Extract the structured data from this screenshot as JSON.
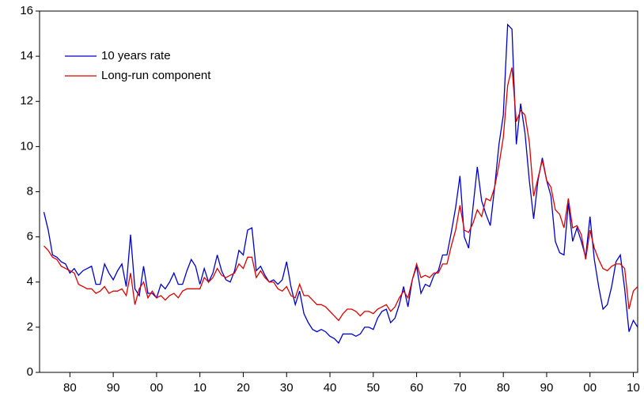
{
  "chart_data": {
    "type": "line",
    "x": [
      1874,
      1875,
      1876,
      1877,
      1878,
      1879,
      1880,
      1881,
      1882,
      1883,
      1884,
      1885,
      1886,
      1887,
      1888,
      1889,
      1890,
      1891,
      1892,
      1893,
      1894,
      1895,
      1896,
      1897,
      1898,
      1899,
      1900,
      1901,
      1902,
      1903,
      1904,
      1905,
      1906,
      1907,
      1908,
      1909,
      1910,
      1911,
      1912,
      1913,
      1914,
      1915,
      1916,
      1917,
      1918,
      1919,
      1920,
      1921,
      1922,
      1923,
      1924,
      1925,
      1926,
      1927,
      1928,
      1929,
      1930,
      1931,
      1932,
      1933,
      1934,
      1935,
      1936,
      1937,
      1938,
      1939,
      1940,
      1941,
      1942,
      1943,
      1944,
      1945,
      1946,
      1947,
      1948,
      1949,
      1950,
      1951,
      1952,
      1953,
      1954,
      1955,
      1956,
      1957,
      1958,
      1959,
      1960,
      1961,
      1962,
      1963,
      1964,
      1965,
      1966,
      1967,
      1968,
      1969,
      1970,
      1971,
      1972,
      1973,
      1974,
      1975,
      1976,
      1977,
      1978,
      1979,
      1980,
      1981,
      1982,
      1983,
      1984,
      1985,
      1986,
      1987,
      1988,
      1989,
      1990,
      1991,
      1992,
      1993,
      1994,
      1995,
      1996,
      1997,
      1998,
      1999,
      2000,
      2001,
      2002,
      2003,
      2004,
      2005,
      2006,
      2007,
      2008,
      2009,
      2010,
      2011
    ],
    "series": [
      {
        "name": "10 years rate",
        "color": "#0000cc",
        "values": [
          7.1,
          6.3,
          5.2,
          5.1,
          4.9,
          4.8,
          4.4,
          4.6,
          4.3,
          4.5,
          4.6,
          4.7,
          3.9,
          3.9,
          4.8,
          4.4,
          4.1,
          4.5,
          4.8,
          3.8,
          6.1,
          3.7,
          3.4,
          4.7,
          3.5,
          3.5,
          3.3,
          3.9,
          3.7,
          4.0,
          4.4,
          3.9,
          3.9,
          4.5,
          5.0,
          4.7,
          3.9,
          4.6,
          4.0,
          4.4,
          5.2,
          4.5,
          4.1,
          4.0,
          4.5,
          5.4,
          5.2,
          6.3,
          6.4,
          4.5,
          4.7,
          4.3,
          4.0,
          4.1,
          3.9,
          4.1,
          4.9,
          3.8,
          3.0,
          3.6,
          2.6,
          2.2,
          1.9,
          1.8,
          1.9,
          1.8,
          1.6,
          1.5,
          1.3,
          1.7,
          1.7,
          1.7,
          1.6,
          1.7,
          2.0,
          2.0,
          1.9,
          2.4,
          2.7,
          2.8,
          2.2,
          2.4,
          3.0,
          3.8,
          2.9,
          4.1,
          4.7,
          3.5,
          3.9,
          3.8,
          4.3,
          4.5,
          5.2,
          5.2,
          6.2,
          7.3,
          8.7,
          6.0,
          5.5,
          7.3,
          9.1,
          7.6,
          7.0,
          6.5,
          8.2,
          10.1,
          11.4,
          15.4,
          15.2,
          10.1,
          11.9,
          10.6,
          8.5,
          6.8,
          8.5,
          9.5,
          8.5,
          7.8,
          5.8,
          5.3,
          5.2,
          7.5,
          5.8,
          6.4,
          5.8,
          5.1,
          6.9,
          5.0,
          3.8,
          2.8,
          3.0,
          3.8,
          4.9,
          5.2,
          3.7,
          1.8,
          2.3,
          2.0
        ]
      },
      {
        "name": "Long-run component",
        "color": "#dd0000",
        "values": [
          5.6,
          5.4,
          5.1,
          5.0,
          4.7,
          4.6,
          4.5,
          4.4,
          3.9,
          3.8,
          3.7,
          3.7,
          3.5,
          3.6,
          3.8,
          3.5,
          3.6,
          3.6,
          3.7,
          3.4,
          4.4,
          3.0,
          3.7,
          4.0,
          3.3,
          3.6,
          3.3,
          3.4,
          3.2,
          3.4,
          3.5,
          3.3,
          3.6,
          3.7,
          3.7,
          3.7,
          3.7,
          4.2,
          4.0,
          4.2,
          4.6,
          4.3,
          4.2,
          4.3,
          4.4,
          4.8,
          4.6,
          5.1,
          5.1,
          4.2,
          4.5,
          4.2,
          4.0,
          4.0,
          3.7,
          3.6,
          3.8,
          3.4,
          3.3,
          3.9,
          3.4,
          3.4,
          3.2,
          3.0,
          3.0,
          2.9,
          2.7,
          2.5,
          2.3,
          2.6,
          2.8,
          2.8,
          2.7,
          2.5,
          2.7,
          2.7,
          2.6,
          2.8,
          2.9,
          3.0,
          2.7,
          2.9,
          3.3,
          3.6,
          3.3,
          4.1,
          4.8,
          4.2,
          4.3,
          4.2,
          4.4,
          4.4,
          4.8,
          4.8,
          5.6,
          6.3,
          7.4,
          6.3,
          6.2,
          6.6,
          7.2,
          6.9,
          7.7,
          7.6,
          8.2,
          9.2,
          10.4,
          12.7,
          13.5,
          11.1,
          11.6,
          11.4,
          10.2,
          7.8,
          8.6,
          9.4,
          8.5,
          8.2,
          7.2,
          7.0,
          6.4,
          7.7,
          6.4,
          6.5,
          6.1,
          5.0,
          6.3,
          5.5,
          5.0,
          4.6,
          4.5,
          4.7,
          4.8,
          4.8,
          4.6,
          2.8,
          3.6,
          3.8
        ]
      }
    ],
    "xlim": [
      1873,
      2011
    ],
    "xticks": [
      {
        "value": 1880,
        "label": "80"
      },
      {
        "value": 1890,
        "label": "90"
      },
      {
        "value": 1900,
        "label": "00"
      },
      {
        "value": 1910,
        "label": "10"
      },
      {
        "value": 1920,
        "label": "20"
      },
      {
        "value": 1930,
        "label": "30"
      },
      {
        "value": 1940,
        "label": "40"
      },
      {
        "value": 1950,
        "label": "50"
      },
      {
        "value": 1960,
        "label": "60"
      },
      {
        "value": 1970,
        "label": "70"
      },
      {
        "value": 1980,
        "label": "80"
      },
      {
        "value": 1990,
        "label": "90"
      },
      {
        "value": 2000,
        "label": "00"
      },
      {
        "value": 2010,
        "label": "10"
      }
    ],
    "ylim": [
      0,
      16
    ],
    "yticks": [
      0,
      2,
      4,
      6,
      8,
      10,
      12,
      14,
      16
    ],
    "legend": "upper-left"
  }
}
